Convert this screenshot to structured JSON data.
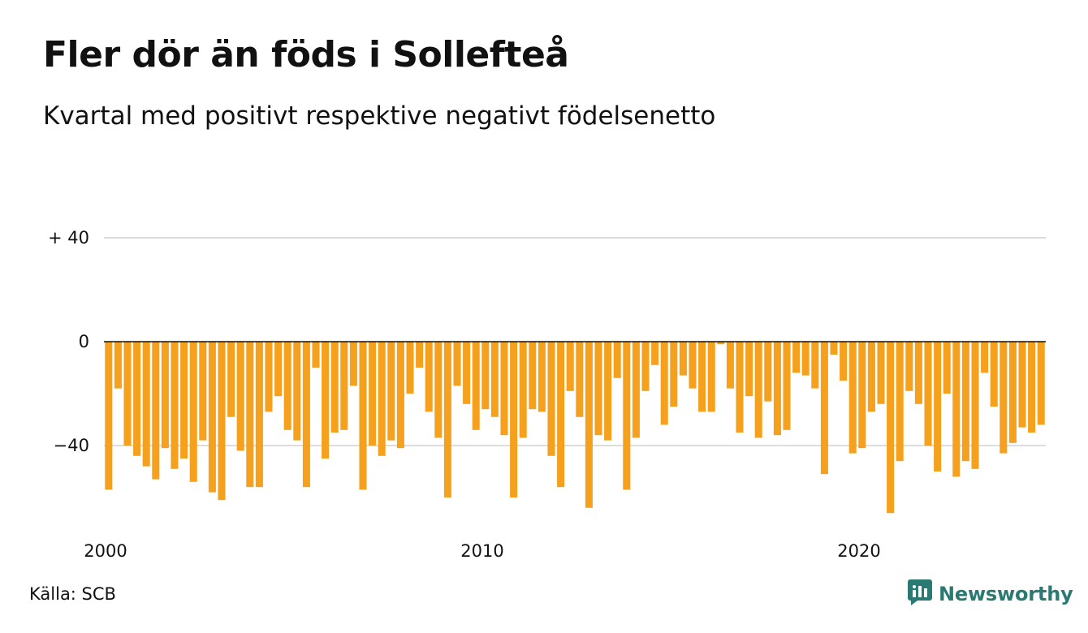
{
  "title": "Fler dör än föds i Sollefteå",
  "subtitle": "Kvartal med positivt respektive negativt födelsenetto",
  "source": "Källa: SCB",
  "brand": {
    "name": "Newsworthy",
    "icon": "newsworthy-logo-icon",
    "color": "#2a7a73"
  },
  "colors": {
    "bar": "#f5a11e",
    "grid": "#dddddd",
    "zero_line": "#111111"
  },
  "chart_data": {
    "type": "bar",
    "title": "Fler dör än föds i Sollefteå",
    "subtitle": "Kvartal med positivt respektive negativt födelsenetto",
    "xlabel": "",
    "ylabel": "",
    "ylim": [
      -72,
      40
    ],
    "y_ticks": [
      {
        "value": 40,
        "label": "+ 40"
      },
      {
        "value": 0,
        "label": "0"
      },
      {
        "value": -40,
        "label": "−40"
      }
    ],
    "x_start": 2000,
    "periods_per_year": 4,
    "x_ticks": [
      {
        "value": 2000,
        "label": "2000"
      },
      {
        "value": 2010,
        "label": "2010"
      },
      {
        "value": 2020,
        "label": "2020"
      }
    ],
    "grid": true,
    "values": [
      -57,
      -18,
      -40,
      -44,
      -48,
      -53,
      -41,
      -49,
      -45,
      -54,
      -38,
      -58,
      -61,
      -29,
      -42,
      -56,
      -56,
      -27,
      -21,
      -34,
      -38,
      -56,
      -10,
      -45,
      -35,
      -34,
      -17,
      -57,
      -40,
      -44,
      -38,
      -41,
      -20,
      -10,
      -27,
      -37,
      -60,
      -17,
      -24,
      -34,
      -26,
      -29,
      -36,
      -60,
      -37,
      -26,
      -27,
      -44,
      -56,
      -19,
      -29,
      -64,
      -36,
      -38,
      -14,
      -57,
      -37,
      -19,
      -9,
      -32,
      -25,
      -13,
      -18,
      -27,
      -27,
      -1,
      -18,
      -35,
      -21,
      -37,
      -23,
      -36,
      -34,
      -12,
      -13,
      -18,
      -51,
      -5,
      -15,
      -43,
      -41,
      -27,
      -24,
      -66,
      -46,
      -19,
      -24,
      -40,
      -50,
      -20,
      -52,
      -46,
      -49,
      -12,
      -25,
      -43,
      -39,
      -33,
      -35,
      -32
    ]
  }
}
